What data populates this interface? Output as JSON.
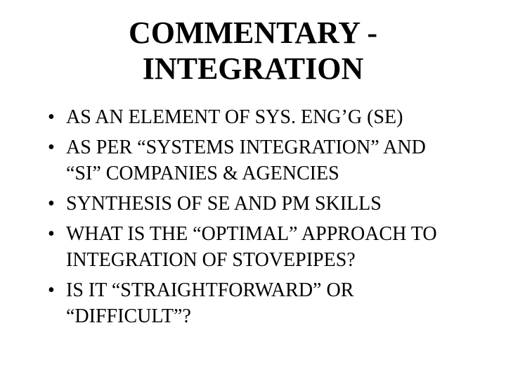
{
  "type": "slide",
  "background_color": "#ffffff",
  "text_color": "#000000",
  "font_family": "Times New Roman",
  "title": {
    "line1": "COMMENTARY -",
    "line2": "INTEGRATION",
    "fontsize": 44,
    "weight": "bold",
    "align": "center"
  },
  "bullets": {
    "fontsize": 28,
    "items": [
      "AS AN ELEMENT OF SYS. ENG’G (SE)",
      "AS PER “SYSTEMS INTEGRATION” AND “SI” COMPANIES & AGENCIES",
      "SYNTHESIS OF SE AND PM SKILLS",
      "WHAT IS THE “OPTIMAL” APPROACH TO INTEGRATION OF STOVEPIPES?",
      "IS IT “STRAIGHTFORWARD” OR “DIFFICULT”?"
    ]
  }
}
